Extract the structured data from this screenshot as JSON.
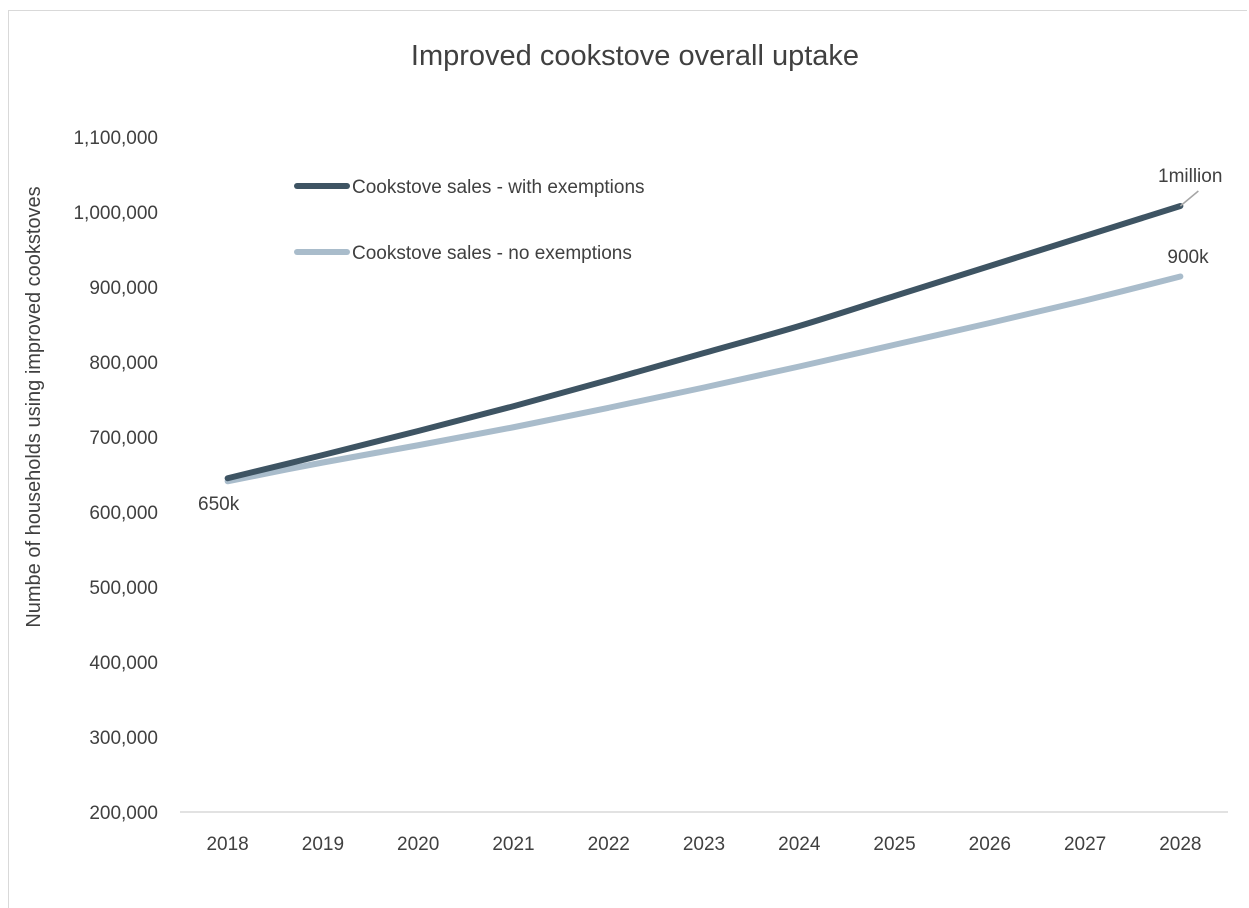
{
  "chart_data": {
    "type": "line",
    "title": "Improved cookstove overall uptake",
    "ylabel": "Numbe of households using improved cookstoves",
    "xlabel": "",
    "ylim": [
      200000,
      1100000
    ],
    "y_ticks": [
      "200,000",
      "300,000",
      "400,000",
      "500,000",
      "600,000",
      "700,000",
      "800,000",
      "900,000",
      "1,000,000",
      "1,100,000"
    ],
    "x": [
      "2018",
      "2019",
      "2020",
      "2021",
      "2022",
      "2023",
      "2024",
      "2025",
      "2026",
      "2027",
      "2028"
    ],
    "series": [
      {
        "name": "Cookstove sales - with exemptions",
        "color": "#3e5463",
        "values": [
          645000,
          676000,
          708000,
          741000,
          776000,
          812000,
          848000,
          888000,
          928000,
          968000,
          1008000
        ]
      },
      {
        "name": "Cookstove sales - no exemptions",
        "color": "#a9bccb",
        "values": [
          641000,
          666000,
          689000,
          713000,
          739000,
          766000,
          794000,
          823000,
          852000,
          882000,
          914000
        ]
      }
    ],
    "legend_position": "top-left",
    "grid": false,
    "annotations": [
      {
        "text": "650k",
        "x": "2018",
        "y": 645000
      },
      {
        "text": "1million",
        "x": "2028",
        "y": 1008000
      },
      {
        "text": "900k",
        "x": "2028",
        "y": 914000
      }
    ]
  }
}
